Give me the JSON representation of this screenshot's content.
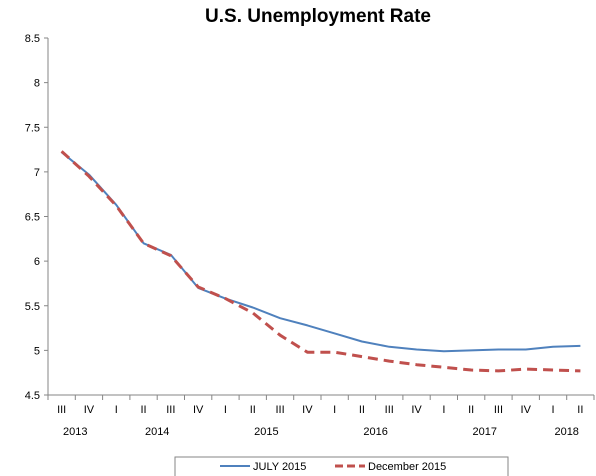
{
  "chart_data": {
    "type": "line",
    "title": "U.S. Unemployment Rate",
    "xlabel": "",
    "ylabel": "",
    "ylim": [
      4.5,
      8.5
    ],
    "yticks": [
      "4.5",
      "5",
      "5.5",
      "6",
      "6.5",
      "7",
      "7.5",
      "8",
      "8.5"
    ],
    "grid": false,
    "legend_position": "bottom",
    "categories": [
      "III",
      "IV",
      "I",
      "II",
      "III",
      "IV",
      "I",
      "II",
      "III",
      "IV",
      "I",
      "II",
      "III",
      "IV",
      "I",
      "II",
      "III",
      "IV",
      "I",
      "II"
    ],
    "years": [
      {
        "label": "2013",
        "start": 0,
        "end": 1
      },
      {
        "label": "2014",
        "start": 2,
        "end": 5
      },
      {
        "label": "2015",
        "start": 6,
        "end": 9
      },
      {
        "label": "2016",
        "start": 10,
        "end": 13
      },
      {
        "label": "2017",
        "start": 14,
        "end": 17
      },
      {
        "label": "2018",
        "start": 18,
        "end": 19
      }
    ],
    "series": [
      {
        "name": "JULY 2015",
        "color": "#4F81BD",
        "dash": "solid",
        "values": [
          7.22,
          6.97,
          6.63,
          6.2,
          6.07,
          5.7,
          5.58,
          5.48,
          5.36,
          5.28,
          5.19,
          5.1,
          5.04,
          5.01,
          4.99,
          5.0,
          5.01,
          5.01,
          5.04,
          5.05
        ]
      },
      {
        "name": "December 2015",
        "color": "#C0504D",
        "dash": "dashed",
        "values": [
          7.23,
          6.95,
          6.62,
          6.2,
          6.06,
          5.71,
          5.58,
          5.42,
          5.17,
          4.98,
          4.98,
          4.93,
          4.88,
          4.84,
          4.81,
          4.78,
          4.77,
          4.79,
          4.78,
          4.77
        ]
      }
    ]
  }
}
